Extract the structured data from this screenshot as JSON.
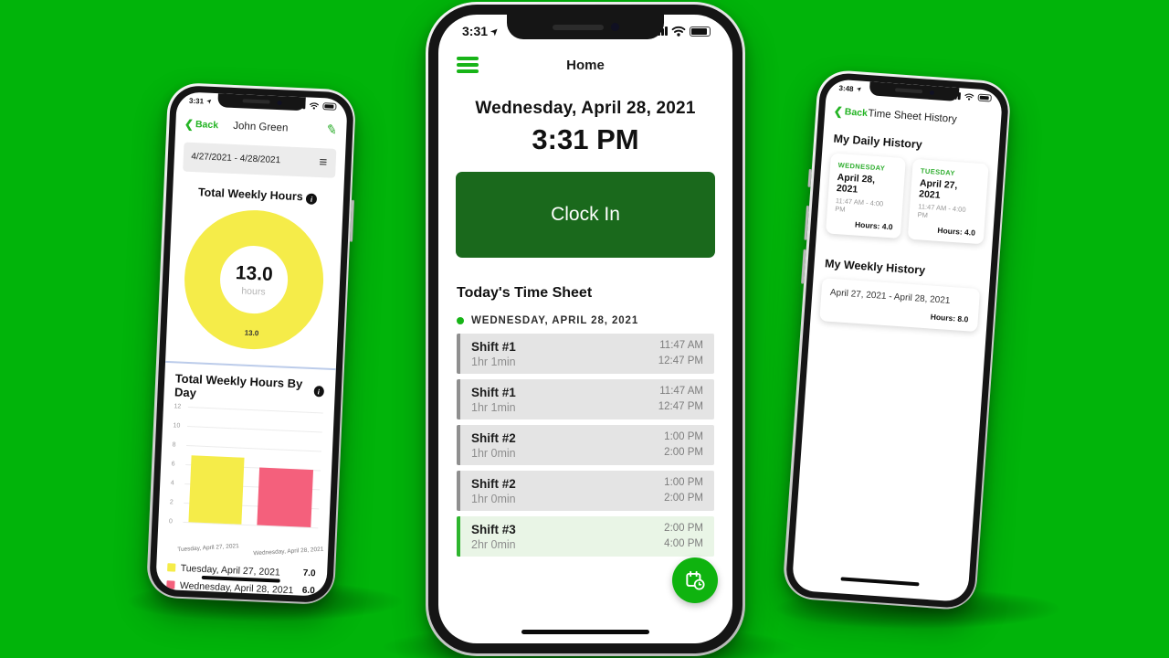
{
  "colors": {
    "background_green": "#01b40a",
    "accent_green": "#16b416",
    "button_dark_green": "#1a691c",
    "fab_green": "#0fb30f",
    "highlight_row_green": "#e9f5e6",
    "row_gray": "#e4e4e4",
    "donut_yellow": "#f5ec49",
    "bar_pink": "#f4607c"
  },
  "center_phone": {
    "status_time": "3:31",
    "nav_title": "Home",
    "date_heading": "Wednesday, April 28, 2021",
    "time_display": "3:31 PM",
    "clock_in_label": "Clock In",
    "section_title": "Today's Time Sheet",
    "day_label": "WEDNESDAY, APRIL 28, 2021",
    "shifts": [
      {
        "name": "Shift #1",
        "duration": "1hr 1min",
        "start": "11:47 AM",
        "end": "12:47 PM",
        "highlighted": false
      },
      {
        "name": "Shift #1",
        "duration": "1hr 1min",
        "start": "11:47 AM",
        "end": "12:47 PM",
        "highlighted": false
      },
      {
        "name": "Shift #2",
        "duration": "1hr 0min",
        "start": "1:00 PM",
        "end": "2:00 PM",
        "highlighted": false
      },
      {
        "name": "Shift #2",
        "duration": "1hr 0min",
        "start": "1:00 PM",
        "end": "2:00 PM",
        "highlighted": false
      },
      {
        "name": "Shift #3",
        "duration": "2hr 0min",
        "start": "2:00 PM",
        "end": "4:00 PM",
        "highlighted": true
      }
    ]
  },
  "left_phone": {
    "status_time": "3:31",
    "back_label": "Back",
    "nav_title": "John Green",
    "date_range": "4/27/2021 - 4/28/2021",
    "donut_title": "Total Weekly Hours",
    "donut_value": "13.0",
    "donut_unit": "hours",
    "donut_slice_label": "13.0",
    "bar_title": "Total Weekly Hours By Day"
  },
  "right_phone": {
    "status_time": "3:48",
    "back_label": "Back",
    "nav_title": "Time Sheet History",
    "daily_title": "My Daily History",
    "weekly_title": "My Weekly History",
    "daily_cards": [
      {
        "day": "WEDNESDAY",
        "date": "April 28, 2021",
        "time_range": "11:47 AM - 4:00 PM",
        "hours": "Hours: 4.0"
      },
      {
        "day": "TUESDAY",
        "date": "April 27, 2021",
        "time_range": "11:47 AM - 4:00 PM",
        "hours": "Hours: 4.0"
      }
    ],
    "weekly_card": {
      "range": "April 27, 2021 - April 28, 2021",
      "hours": "Hours: 8.0"
    }
  },
  "chart_data": [
    {
      "type": "pie",
      "variant": "donut",
      "title": "Total Weekly Hours",
      "labels": [
        "Total weekly hours"
      ],
      "values": [
        13.0
      ],
      "colors": [
        "#f5ec49"
      ],
      "center_text": "13.0",
      "center_subtext": "hours",
      "slice_label": "13.0"
    },
    {
      "type": "bar",
      "title": "Total Weekly Hours By Day",
      "categories": [
        "Tuesday, April 27, 2021",
        "Wednesday, April 28, 2021"
      ],
      "values": [
        7.0,
        6.0
      ],
      "colors": [
        "#f5ec49",
        "#f4607c"
      ],
      "ylim": [
        0,
        12
      ],
      "yticks": [
        "12",
        "10",
        "8",
        "6",
        "4",
        "2",
        "0"
      ],
      "grid": true,
      "legend_position": "bottom",
      "legend": [
        {
          "label": "Tuesday, April 27, 2021",
          "value": "7.0",
          "color": "#f5ec49"
        },
        {
          "label": "Wednesday, April 28, 2021",
          "value": "6.0",
          "color": "#f4607c"
        }
      ]
    }
  ]
}
